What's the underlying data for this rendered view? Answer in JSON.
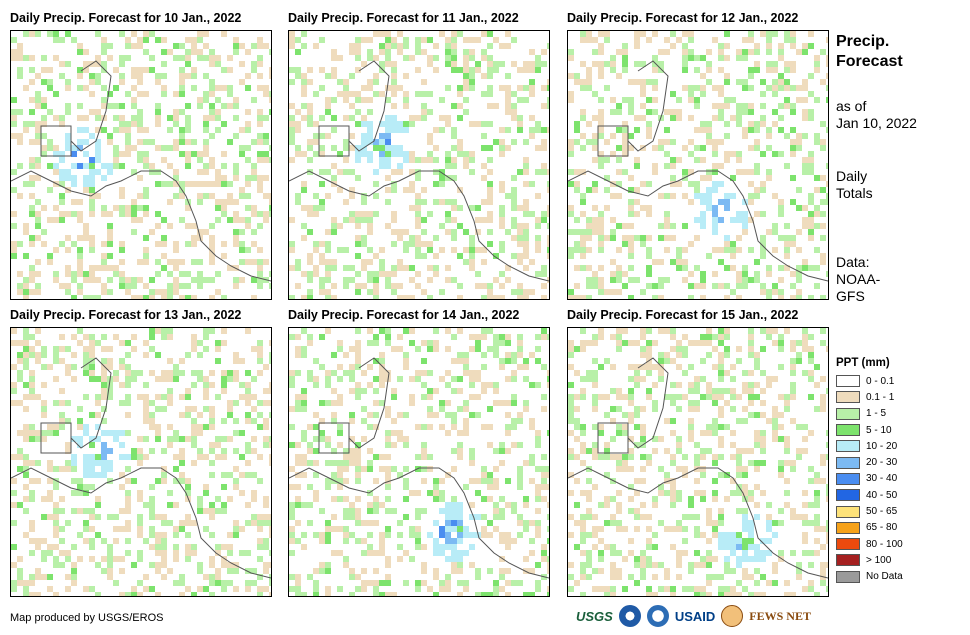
{
  "panels": [
    {
      "title": "Daily Precip. Forecast for 10 Jan., 2022",
      "hotspot": "gulf-honduras"
    },
    {
      "title": "Daily Precip. Forecast for 11 Jan., 2022",
      "hotspot": "yucatan-east"
    },
    {
      "title": "Daily Precip. Forecast for 12 Jan., 2022",
      "hotspot": "nicaragua-caribbean"
    },
    {
      "title": "Daily Precip. Forecast for 13 Jan., 2022",
      "hotspot": "guatemala-caribbean"
    },
    {
      "title": "Daily Precip. Forecast for 14 Jan., 2022",
      "hotspot": "nicaragua-pacific"
    },
    {
      "title": "Daily Precip. Forecast for 15 Jan., 2022",
      "hotspot": "costa-rica-caribbean"
    }
  ],
  "side": {
    "heading_line1": "Precip.",
    "heading_line2": "Forecast",
    "asof_line1": "as of",
    "asof_line2": "Jan 10, 2022",
    "totals_line1": "Daily",
    "totals_line2": "Totals",
    "data_line1": "Data:",
    "data_line2": "NOAA-",
    "data_line3": "GFS"
  },
  "legend": {
    "title": "PPT (mm)",
    "items": [
      {
        "label": "0 - 0.1",
        "color": "#ffffff"
      },
      {
        "label": "0.1 - 1",
        "color": "#efdcbd"
      },
      {
        "label": "1 - 5",
        "color": "#b8f0a8"
      },
      {
        "label": "5 - 10",
        "color": "#7de36d"
      },
      {
        "label": "10 - 20",
        "color": "#b8ecf7"
      },
      {
        "label": "20 - 30",
        "color": "#7cbaf3"
      },
      {
        "label": "30 - 40",
        "color": "#4a8df0"
      },
      {
        "label": "40 - 50",
        "color": "#2266e3"
      },
      {
        "label": "50 - 65",
        "color": "#fde27a"
      },
      {
        "label": "65 - 80",
        "color": "#f6a21a"
      },
      {
        "label": "80 - 100",
        "color": "#ec4a0e"
      },
      {
        "label": "> 100",
        "color": "#a52020"
      },
      {
        "label": "No Data",
        "color": "#9a9a9a"
      }
    ]
  },
  "credit": "Map produced by USGS/EROS",
  "logos": {
    "usgs": "USGS",
    "usaid": "USAID",
    "fews": "FEWS NET"
  }
}
